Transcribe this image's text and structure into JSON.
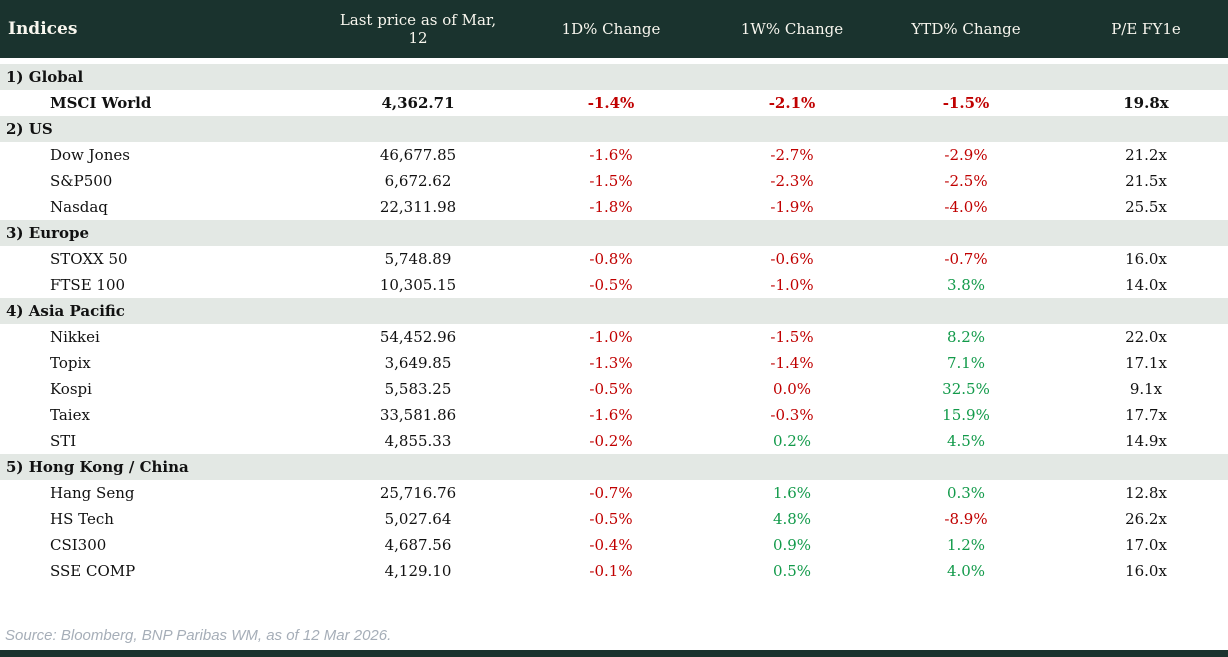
{
  "chart_data": {
    "type": "table",
    "title": "Indices",
    "columns": [
      "Last price as of Mar, 12",
      "1D% Change",
      "1W% Change",
      "YTD% Change",
      "P/E FY1e"
    ],
    "sections": [
      {
        "label": "1) Global",
        "rows": [
          {
            "name": "MSCI World",
            "emphasis": true,
            "last_price": "4,362.71",
            "changes": [
              {
                "v": "-1.4%",
                "dir": "neg"
              },
              {
                "v": "-2.1%",
                "dir": "neg"
              },
              {
                "v": "-1.5%",
                "dir": "neg"
              }
            ],
            "pe": "19.8x"
          }
        ]
      },
      {
        "label": "2) US",
        "rows": [
          {
            "name": "Dow Jones",
            "last_price": "46,677.85",
            "changes": [
              {
                "v": "-1.6%",
                "dir": "neg"
              },
              {
                "v": "-2.7%",
                "dir": "neg"
              },
              {
                "v": "-2.9%",
                "dir": "neg"
              }
            ],
            "pe": "21.2x"
          },
          {
            "name": "S&P500",
            "last_price": "6,672.62",
            "changes": [
              {
                "v": "-1.5%",
                "dir": "neg"
              },
              {
                "v": "-2.3%",
                "dir": "neg"
              },
              {
                "v": "-2.5%",
                "dir": "neg"
              }
            ],
            "pe": "21.5x"
          },
          {
            "name": "Nasdaq",
            "last_price": "22,311.98",
            "changes": [
              {
                "v": "-1.8%",
                "dir": "neg"
              },
              {
                "v": "-1.9%",
                "dir": "neg"
              },
              {
                "v": "-4.0%",
                "dir": "neg"
              }
            ],
            "pe": "25.5x"
          }
        ]
      },
      {
        "label": "3) Europe",
        "rows": [
          {
            "name": "STOXX 50",
            "last_price": "5,748.89",
            "changes": [
              {
                "v": "-0.8%",
                "dir": "neg"
              },
              {
                "v": "-0.6%",
                "dir": "neg"
              },
              {
                "v": "-0.7%",
                "dir": "neg"
              }
            ],
            "pe": "16.0x"
          },
          {
            "name": "FTSE 100",
            "last_price": "10,305.15",
            "changes": [
              {
                "v": "-0.5%",
                "dir": "neg"
              },
              {
                "v": "-1.0%",
                "dir": "neg"
              },
              {
                "v": "3.8%",
                "dir": "pos"
              }
            ],
            "pe": "14.0x"
          }
        ]
      },
      {
        "label": "4) Asia Pacific",
        "rows": [
          {
            "name": "Nikkei",
            "last_price": "54,452.96",
            "changes": [
              {
                "v": "-1.0%",
                "dir": "neg"
              },
              {
                "v": "-1.5%",
                "dir": "neg"
              },
              {
                "v": "8.2%",
                "dir": "pos"
              }
            ],
            "pe": "22.0x"
          },
          {
            "name": "Topix",
            "last_price": "3,649.85",
            "changes": [
              {
                "v": "-1.3%",
                "dir": "neg"
              },
              {
                "v": "-1.4%",
                "dir": "neg"
              },
              {
                "v": "7.1%",
                "dir": "pos"
              }
            ],
            "pe": "17.1x"
          },
          {
            "name": "Kospi",
            "last_price": "5,583.25",
            "changes": [
              {
                "v": "-0.5%",
                "dir": "neg"
              },
              {
                "v": "0.0%",
                "dir": "neg"
              },
              {
                "v": "32.5%",
                "dir": "pos"
              }
            ],
            "pe": "9.1x"
          },
          {
            "name": "Taiex",
            "last_price": "33,581.86",
            "changes": [
              {
                "v": "-1.6%",
                "dir": "neg"
              },
              {
                "v": "-0.3%",
                "dir": "neg"
              },
              {
                "v": "15.9%",
                "dir": "pos"
              }
            ],
            "pe": "17.7x"
          },
          {
            "name": "STI",
            "last_price": "4,855.33",
            "changes": [
              {
                "v": "-0.2%",
                "dir": "neg"
              },
              {
                "v": "0.2%",
                "dir": "pos"
              },
              {
                "v": "4.5%",
                "dir": "pos"
              }
            ],
            "pe": "14.9x"
          }
        ]
      },
      {
        "label": "5) Hong Kong / China",
        "rows": [
          {
            "name": "Hang Seng",
            "last_price": "25,716.76",
            "changes": [
              {
                "v": "-0.7%",
                "dir": "neg"
              },
              {
                "v": "1.6%",
                "dir": "pos"
              },
              {
                "v": "0.3%",
                "dir": "pos"
              }
            ],
            "pe": "12.8x"
          },
          {
            "name": "HS Tech",
            "last_price": "5,027.64",
            "changes": [
              {
                "v": "-0.5%",
                "dir": "neg"
              },
              {
                "v": "4.8%",
                "dir": "pos"
              },
              {
                "v": "-8.9%",
                "dir": "neg"
              }
            ],
            "pe": "26.2x"
          },
          {
            "name": "CSI300",
            "last_price": "4,687.56",
            "changes": [
              {
                "v": "-0.4%",
                "dir": "neg"
              },
              {
                "v": "0.9%",
                "dir": "pos"
              },
              {
                "v": "1.2%",
                "dir": "pos"
              }
            ],
            "pe": "17.0x"
          },
          {
            "name": "SSE COMP",
            "last_price": "4,129.10",
            "changes": [
              {
                "v": "-0.1%",
                "dir": "neg"
              },
              {
                "v": "0.5%",
                "dir": "pos"
              },
              {
                "v": "4.0%",
                "dir": "pos"
              }
            ],
            "pe": "16.0x"
          }
        ]
      }
    ],
    "source": "Source: Bloomberg, BNP Paribas WM, as of 12 Mar 2026."
  },
  "colors": {
    "header_bg": "#1a332e",
    "section_bg": "#e3e8e4",
    "negative": "#c00000",
    "positive": "#129a4a",
    "source_text": "#a6aeb8"
  }
}
